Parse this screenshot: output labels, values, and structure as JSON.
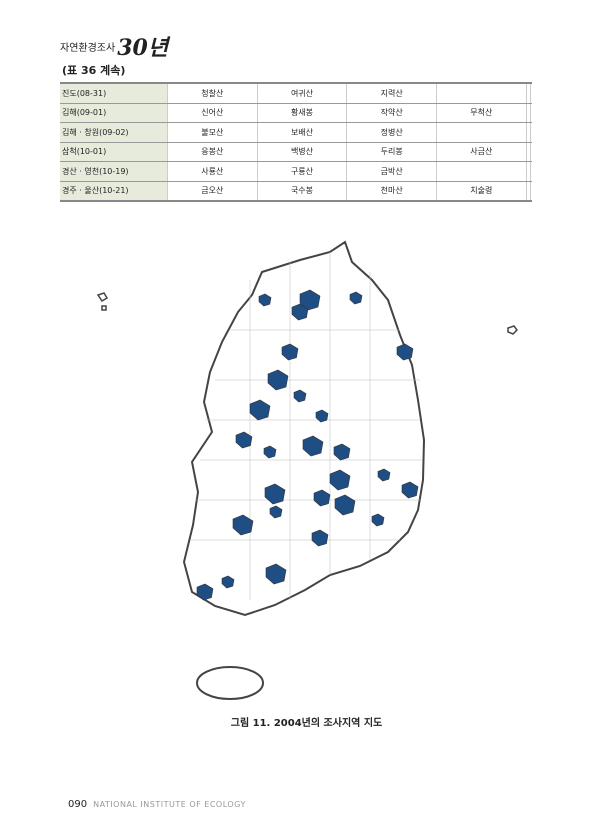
{
  "header": {
    "title": "자연환경조사",
    "logo": "30년"
  },
  "table_caption": "(표 36 계속)",
  "table": {
    "rows": [
      [
        "진도(08-31)",
        "청찰산",
        "여귀산",
        "지력산",
        "",
        "",
        ""
      ],
      [
        "김해(09-01)",
        "신어산",
        "황새봉",
        "작약산",
        "무척산",
        "",
        ""
      ],
      [
        "김해 · 창원(09-02)",
        "불모산",
        "보배산",
        "정병산",
        "",
        "",
        ""
      ],
      [
        "삼척(10-01)",
        "응봉산",
        "백병산",
        "두리봉",
        "사금산",
        "",
        ""
      ],
      [
        "경산 · 영천(10-19)",
        "사룡산",
        "구룡산",
        "금박산",
        "",
        "",
        ""
      ],
      [
        "경주 · 울산(10-21)",
        "금오산",
        "국수봉",
        "천마산",
        "치술령",
        "",
        ""
      ]
    ]
  },
  "figure": {
    "caption": "그림 11. 2004년의 조사지역 지도",
    "highlight_color": "#1f4e85"
  },
  "footer": {
    "page": "090",
    "institute": "NATIONAL INSTITUTE OF ECOLOGY"
  }
}
